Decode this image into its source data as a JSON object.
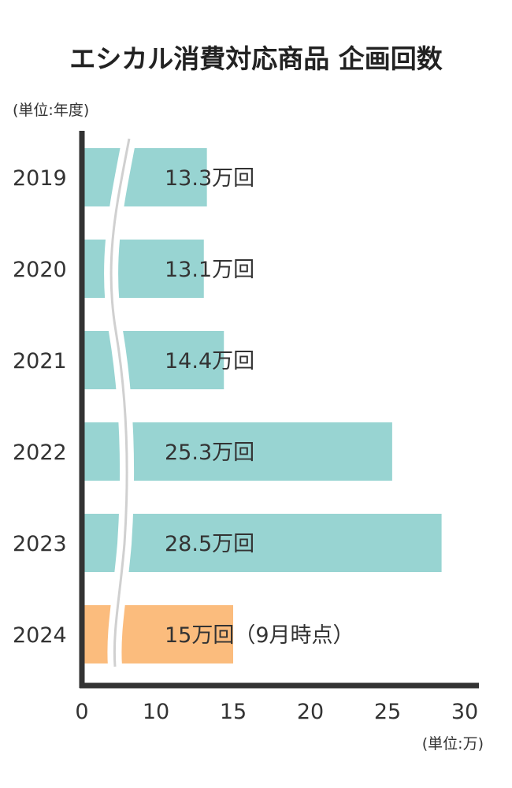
{
  "title": "エシカル消費対応商品 企画回数",
  "y_unit_label": "(単位:年度)",
  "x_unit_label": "(単位:万)",
  "colors": {
    "bar": "#98d4d2",
    "highlight_bar": "#fbbc7d",
    "axis": "#333333",
    "break_line": "#d0d0d0",
    "text": "#333333"
  },
  "chart_data": {
    "type": "bar",
    "orientation": "horizontal",
    "axis_break": true,
    "categories": [
      "2019",
      "2020",
      "2021",
      "2022",
      "2023",
      "2024"
    ],
    "values": [
      13.3,
      13.1,
      14.4,
      25.3,
      28.5,
      15
    ],
    "data_labels": [
      "13.3万回",
      "13.1万回",
      "14.4万回",
      "25.3万回",
      "28.5万回",
      "15万回（9月時点）"
    ],
    "highlight_category": "2024",
    "xlim": [
      0,
      30
    ],
    "xticks": [
      "0",
      "10",
      "15",
      "20",
      "25",
      "30"
    ],
    "xlabel": "(単位:万)",
    "ylabel": "(単位:年度)",
    "title": "エシカル消費対応商品 企画回数",
    "grid": false,
    "legend": "none"
  }
}
